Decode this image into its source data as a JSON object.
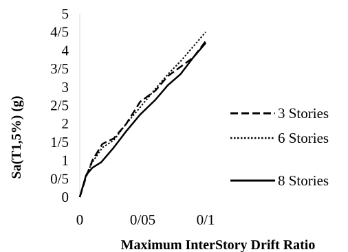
{
  "chart_data": {
    "type": "line",
    "title": "",
    "xlabel": "Maximum InterStory Drift Ratio",
    "ylabel": "Sa(T1,5%) (g)",
    "xlim": [
      0,
      0.1
    ],
    "ylim": [
      0,
      5
    ],
    "x_ticks": [
      {
        "value": 0,
        "label": "0"
      },
      {
        "value": 0.05,
        "label": "0/05"
      },
      {
        "value": 0.1,
        "label": "0/1"
      }
    ],
    "y_ticks": [
      {
        "value": 0,
        "label": "0"
      },
      {
        "value": 0.5,
        "label": "0/5"
      },
      {
        "value": 1,
        "label": "1"
      },
      {
        "value": 1.5,
        "label": "1/5"
      },
      {
        "value": 2,
        "label": "2"
      },
      {
        "value": 2.5,
        "label": "2/5"
      },
      {
        "value": 3,
        "label": "3"
      },
      {
        "value": 3.5,
        "label": "3/5"
      },
      {
        "value": 4,
        "label": "4"
      },
      {
        "value": 4.5,
        "label": "4/5"
      },
      {
        "value": 5,
        "label": "5"
      }
    ],
    "grid": false,
    "legend_position": "right",
    "series": [
      {
        "name": "3 Stories",
        "style": "dashed",
        "color": "#000000",
        "points": [
          [
            0,
            0
          ],
          [
            0.005,
            0.55
          ],
          [
            0.01,
            1.0
          ],
          [
            0.018,
            1.45
          ],
          [
            0.027,
            1.6
          ],
          [
            0.037,
            2.0
          ],
          [
            0.048,
            2.6
          ],
          [
            0.06,
            2.9
          ],
          [
            0.07,
            3.3
          ],
          [
            0.08,
            3.55
          ],
          [
            0.09,
            3.8
          ],
          [
            0.1,
            4.25
          ]
        ]
      },
      {
        "name": "6 Stories",
        "style": "dotted",
        "color": "#000000",
        "points": [
          [
            0,
            0
          ],
          [
            0.005,
            0.6
          ],
          [
            0.01,
            0.95
          ],
          [
            0.018,
            1.35
          ],
          [
            0.027,
            1.55
          ],
          [
            0.037,
            2.0
          ],
          [
            0.048,
            2.45
          ],
          [
            0.06,
            2.95
          ],
          [
            0.07,
            3.35
          ],
          [
            0.08,
            3.7
          ],
          [
            0.09,
            4.1
          ],
          [
            0.1,
            4.5
          ]
        ]
      },
      {
        "name": "8 Stories",
        "style": "solid",
        "color": "#000000",
        "points": [
          [
            0,
            0
          ],
          [
            0.005,
            0.6
          ],
          [
            0.01,
            0.8
          ],
          [
            0.017,
            0.95
          ],
          [
            0.027,
            1.35
          ],
          [
            0.037,
            1.8
          ],
          [
            0.048,
            2.25
          ],
          [
            0.06,
            2.65
          ],
          [
            0.07,
            3.05
          ],
          [
            0.08,
            3.35
          ],
          [
            0.09,
            3.8
          ],
          [
            0.1,
            4.2
          ]
        ]
      }
    ]
  }
}
